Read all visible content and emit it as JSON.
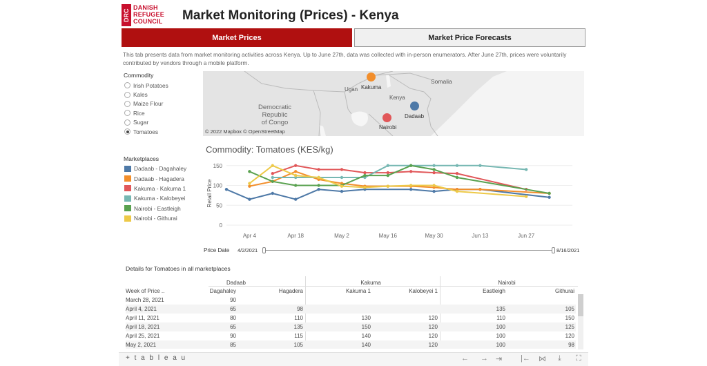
{
  "logo": {
    "vertical": "DRC",
    "lines": [
      "DANISH",
      "REFUGEE",
      "COUNCIL"
    ]
  },
  "title": "Market Monitoring (Prices) - Kenya",
  "tabs": [
    {
      "label": "Market Prices",
      "active": true
    },
    {
      "label": "Market Price Forecasts",
      "active": false
    }
  ],
  "description": "This tab presents data from market monitoring activities across Kenya. Up to June 27th, data was collected with in-person enumerators. After June 27th, prices were voluntarily contributed by vendors through a mobile platform.",
  "commodity_filter": {
    "title": "Commodity",
    "options": [
      "Irish Potatoes",
      "Kales",
      "Maize Flour",
      "Rice",
      "Sugar",
      "Tomatoes"
    ],
    "selected": "Tomatoes"
  },
  "marketplaces": {
    "title": "Marketplaces",
    "items": [
      {
        "label": "Dadaab - Dagahaley",
        "color": "#4e79a7"
      },
      {
        "label": "Dadaab - Hagadera",
        "color": "#f28e2b"
      },
      {
        "label": "Kakuma - Kakuma 1",
        "color": "#e15759"
      },
      {
        "label": "Kakuma - Kalobeyei",
        "color": "#76b7b2"
      },
      {
        "label": "Nairobi - Eastleigh",
        "color": "#59a14f"
      },
      {
        "label": "Nairobi - Githurai",
        "color": "#edc948"
      }
    ]
  },
  "map": {
    "labels": {
      "uganda": "Ugan",
      "somalia": "Somalia",
      "kenya": "Kenya",
      "drc": "Democratic\nRepublic\nof Congo"
    },
    "markers": [
      {
        "label": "Kakuma",
        "color": "#f28e2b"
      },
      {
        "label": "Dadaab",
        "color": "#4e79a7"
      },
      {
        "label": "Nairobi",
        "color": "#e15759"
      }
    ],
    "attribution": "© 2022 Mapbox  © OpenStreetMap"
  },
  "chart_data": {
    "type": "line",
    "title": "Commodity: Tomatoes (KES/kg)",
    "ylabel": "Retail Price",
    "ylim": [
      0,
      160
    ],
    "yticks": [
      0,
      50,
      100,
      150
    ],
    "xlim": [
      "2021-03-28",
      "2021-07-11"
    ],
    "xticks": [
      {
        "date": "2021-04-04",
        "label": "Apr 4"
      },
      {
        "date": "2021-04-18",
        "label": "Apr 18"
      },
      {
        "date": "2021-05-02",
        "label": "May 2"
      },
      {
        "date": "2021-05-16",
        "label": "May 16"
      },
      {
        "date": "2021-05-30",
        "label": "May 30"
      },
      {
        "date": "2021-06-13",
        "label": "Jun 13"
      },
      {
        "date": "2021-06-27",
        "label": "Jun 27"
      }
    ],
    "series": [
      {
        "name": "Dadaab - Dagahaley",
        "color": "#4e79a7",
        "x": [
          "2021-03-28",
          "2021-04-04",
          "2021-04-11",
          "2021-04-18",
          "2021-04-25",
          "2021-05-02",
          "2021-05-09",
          "2021-05-23",
          "2021-05-30",
          "2021-06-06",
          "2021-06-13",
          "2021-07-04"
        ],
        "y": [
          90,
          65,
          80,
          65,
          90,
          85,
          90,
          90,
          85,
          90,
          90,
          70
        ]
      },
      {
        "name": "Dadaab - Hagadera",
        "color": "#f28e2b",
        "x": [
          "2021-04-04",
          "2021-04-11",
          "2021-04-18",
          "2021-04-25",
          "2021-05-02",
          "2021-05-09",
          "2021-05-16",
          "2021-05-23",
          "2021-05-30",
          "2021-06-06",
          "2021-06-13",
          "2021-07-04"
        ],
        "y": [
          98,
          110,
          135,
          115,
          105,
          98,
          98,
          98,
          95,
          90,
          90,
          80
        ]
      },
      {
        "name": "Kakuma - Kakuma 1",
        "color": "#e15759",
        "x": [
          "2021-04-11",
          "2021-04-18",
          "2021-04-25",
          "2021-05-02",
          "2021-05-09",
          "2021-05-16",
          "2021-05-23",
          "2021-05-30",
          "2021-06-06",
          "2021-06-27"
        ],
        "y": [
          130,
          150,
          140,
          140,
          132,
          132,
          135,
          132,
          130,
          90
        ]
      },
      {
        "name": "Kakuma - Kalobeyei",
        "color": "#76b7b2",
        "x": [
          "2021-04-11",
          "2021-04-18",
          "2021-04-25",
          "2021-05-02",
          "2021-05-09",
          "2021-05-16",
          "2021-05-23",
          "2021-05-30",
          "2021-06-06",
          "2021-06-13",
          "2021-06-27"
        ],
        "y": [
          120,
          120,
          120,
          120,
          120,
          150,
          150,
          150,
          150,
          150,
          140
        ]
      },
      {
        "name": "Nairobi - Eastleigh",
        "color": "#59a14f",
        "x": [
          "2021-04-04",
          "2021-04-11",
          "2021-04-18",
          "2021-04-25",
          "2021-05-02",
          "2021-05-09",
          "2021-05-16",
          "2021-05-23",
          "2021-05-30",
          "2021-06-06",
          "2021-07-04"
        ],
        "y": [
          135,
          110,
          100,
          100,
          100,
          125,
          125,
          150,
          140,
          120,
          80
        ]
      },
      {
        "name": "Nairobi - Githurai",
        "color": "#edc948",
        "x": [
          "2021-04-04",
          "2021-04-11",
          "2021-04-18",
          "2021-04-25",
          "2021-05-02",
          "2021-05-09",
          "2021-05-16",
          "2021-05-23",
          "2021-05-30",
          "2021-06-06",
          "2021-06-27"
        ],
        "y": [
          105,
          150,
          125,
          120,
          98,
          95,
          98,
          100,
          100,
          85,
          72
        ]
      }
    ]
  },
  "date_filter": {
    "label": "Price Date",
    "start": "4/2/2021",
    "end": "8/16/2021"
  },
  "table": {
    "title": "Details for Tomatoes in all marketplaces",
    "groups": [
      "Dadaab",
      "Kakuma",
      "Nairobi"
    ],
    "row_header": "Week of Price ..",
    "columns": [
      "Dagahaley",
      "Hagadera",
      "Kakuma 1",
      "Kalobeyei 1",
      "Eastleigh",
      "Githurai"
    ],
    "rows": [
      {
        "week": "March 28, 2021",
        "values": [
          "90",
          "",
          "",
          "",
          "",
          ""
        ]
      },
      {
        "week": "April 4, 2021",
        "values": [
          "65",
          "98",
          "",
          "",
          "135",
          "105"
        ]
      },
      {
        "week": "April 11, 2021",
        "values": [
          "80",
          "110",
          "130",
          "120",
          "110",
          "150"
        ]
      },
      {
        "week": "April 18, 2021",
        "values": [
          "65",
          "135",
          "150",
          "120",
          "100",
          "125"
        ]
      },
      {
        "week": "April 25, 2021",
        "values": [
          "90",
          "115",
          "140",
          "120",
          "100",
          "120"
        ]
      },
      {
        "week": "May 2, 2021",
        "values": [
          "85",
          "105",
          "140",
          "120",
          "100",
          "98"
        ]
      }
    ]
  },
  "footer": {
    "brand": "+ t a b l e a u"
  }
}
